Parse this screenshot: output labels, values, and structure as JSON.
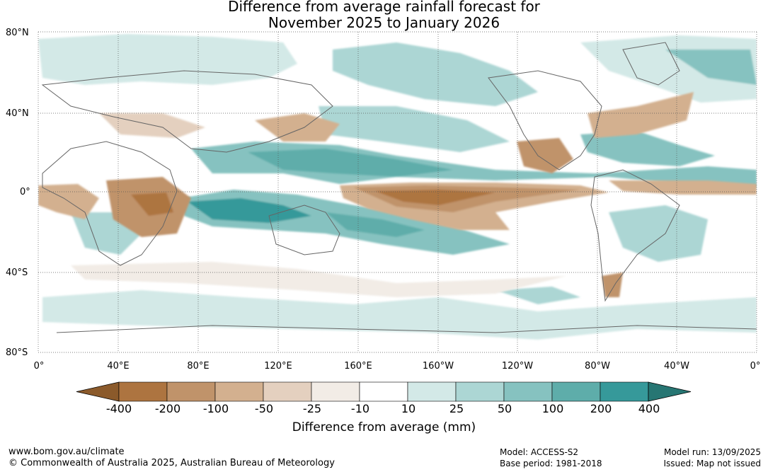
{
  "title_line1": "Difference from average rainfall forecast for",
  "title_line2": "November 2025 to January 2026",
  "lat_labels": [
    "80°N",
    "40°N",
    "0°",
    "40°S",
    "80°S"
  ],
  "lon_labels": [
    "0°",
    "40°E",
    "80°E",
    "120°E",
    "160°E",
    "160°W",
    "120°W",
    "80°W",
    "40°W",
    "0°"
  ],
  "colorbar": {
    "labels": [
      "-400",
      "-200",
      "-100",
      "-50",
      "-25",
      "-10",
      "10",
      "25",
      "50",
      "100",
      "200",
      "400"
    ],
    "colors": [
      "#8b5a2b",
      "#ad7440",
      "#c0936a",
      "#d3b08f",
      "#e4d0bf",
      "#f2ece6",
      "#ffffff",
      "#d3e9e7",
      "#acd6d4",
      "#86c2c0",
      "#5eadaa",
      "#36999a",
      "#277673"
    ],
    "title": "Difference from average (mm)"
  },
  "footer": {
    "url": "www.bom.gov.au/climate",
    "copyright": "© Commonwealth of Australia 2025, Australian Bureau of Meteorology",
    "model": "Model: ACCESS-S2",
    "base_period": "Base period: 1981-2018",
    "model_run": "Model run: 13/09/2025",
    "issued": "Issued: Map not issued"
  }
}
